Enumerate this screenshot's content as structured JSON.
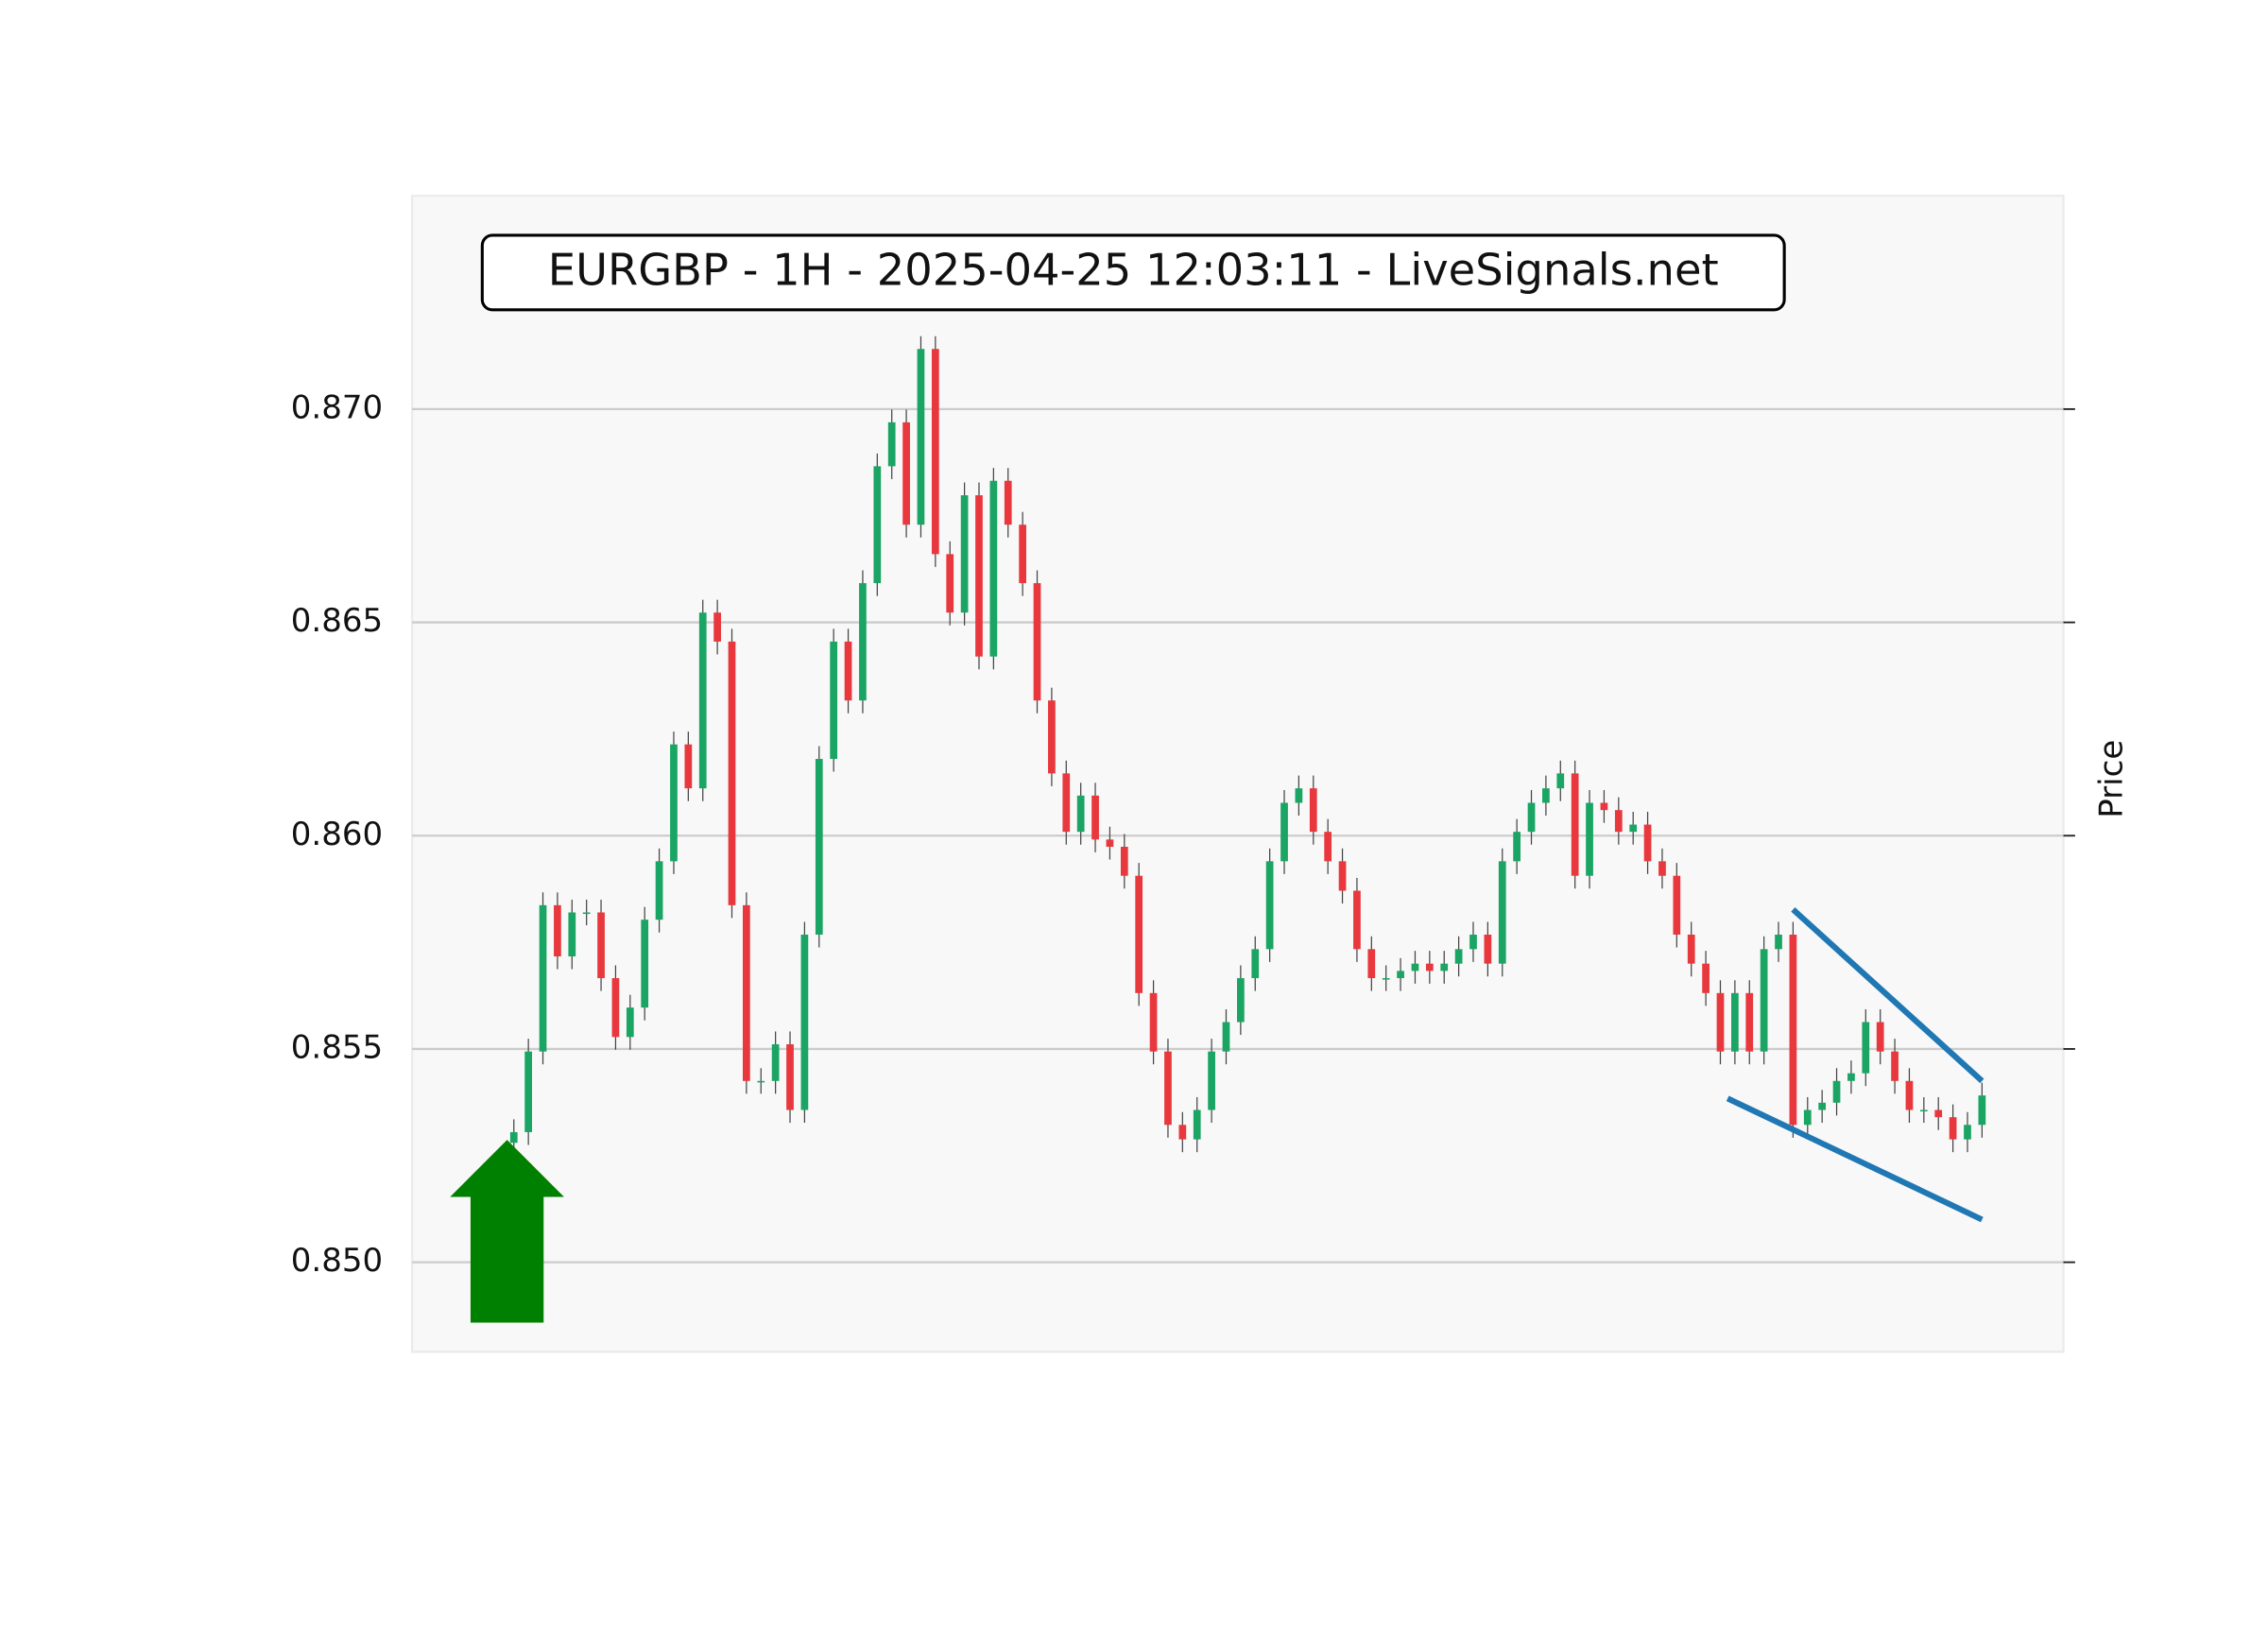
{
  "chart_data": {
    "type": "candlestick",
    "title": "EURGBP - 1H - 2025-04-25 12:03:11 - LiveSignals.net",
    "y_label": "Price",
    "up_color": "#1aa564",
    "down_color": "#e8383d",
    "wick_color": "#444444",
    "grid": true,
    "xlim": [
      -7,
      106.6
    ],
    "ylim": [
      0.8479,
      0.875
    ],
    "yticks": [
      {
        "value": 0.85,
        "label": "0.850"
      },
      0.855,
      {
        "value": 0.86,
        "label": "0.860"
      },
      0.865,
      {
        "value": 0.87,
        "label": "0.870"
      }
    ],
    "open": [
      0.8528,
      0.85305,
      0.85494,
      0.85837,
      0.85717,
      0.8582,
      0.8582,
      0.85666,
      0.85528,
      0.85597,
      0.85803,
      0.8594,
      0.86214,
      0.86111,
      0.86523,
      0.86455,
      0.85837,
      0.85425,
      0.85425,
      0.85511,
      0.85357,
      0.85768,
      0.8618,
      0.86455,
      0.86317,
      0.86592,
      0.86866,
      0.86969,
      0.86729,
      0.87141,
      0.8666,
      0.86523,
      0.86798,
      0.8642,
      0.86832,
      0.86729,
      0.86592,
      0.86317,
      0.86146,
      0.86009,
      0.86094,
      0.85991,
      0.85974,
      0.85906,
      0.85631,
      0.85494,
      0.85322,
      0.85288,
      0.85357,
      0.85494,
      0.85563,
      0.85666,
      0.85734,
      0.8594,
      0.86077,
      0.86111,
      0.86009,
      0.8594,
      0.85871,
      0.85734,
      0.85666,
      0.85666,
      0.85683,
      0.857,
      0.85683,
      0.857,
      0.85734,
      0.85768,
      0.857,
      0.8594,
      0.86009,
      0.86077,
      0.86111,
      0.86146,
      0.85906,
      0.86077,
      0.8606,
      0.86009,
      0.86026,
      0.8594,
      0.85906,
      0.85768,
      0.857,
      0.85631,
      0.85494,
      0.85631,
      0.85494,
      0.85734,
      0.85768,
      0.85322,
      0.85357,
      0.85374,
      0.85425,
      0.85443,
      0.85563,
      0.85494,
      0.85425,
      0.85357,
      0.85357,
      0.8534,
      0.85288,
      0.85322
    ],
    "high": [
      0.85335,
      0.85524,
      0.85867,
      0.85867,
      0.8585,
      0.8585,
      0.8585,
      0.85696,
      0.85627,
      0.85833,
      0.8597,
      0.86244,
      0.86244,
      0.86553,
      0.86553,
      0.86485,
      0.85867,
      0.85455,
      0.85541,
      0.85541,
      0.85798,
      0.8621,
      0.86485,
      0.86485,
      0.86622,
      0.86896,
      0.86999,
      0.86999,
      0.87171,
      0.87171,
      0.8669,
      0.86828,
      0.86828,
      0.86862,
      0.86862,
      0.86759,
      0.86622,
      0.86347,
      0.86176,
      0.86124,
      0.86124,
      0.86021,
      0.86004,
      0.85936,
      0.85661,
      0.85524,
      0.85352,
      0.85387,
      0.85524,
      0.85593,
      0.85696,
      0.85764,
      0.8597,
      0.86107,
      0.86141,
      0.86141,
      0.86039,
      0.8597,
      0.85901,
      0.85764,
      0.85696,
      0.85713,
      0.8573,
      0.8573,
      0.8573,
      0.85764,
      0.85798,
      0.85798,
      0.8597,
      0.86039,
      0.86107,
      0.86141,
      0.86176,
      0.86176,
      0.86107,
      0.86107,
      0.8609,
      0.86056,
      0.86056,
      0.8597,
      0.85936,
      0.85798,
      0.8573,
      0.85661,
      0.85661,
      0.85661,
      0.85764,
      0.85798,
      0.85798,
      0.85387,
      0.85404,
      0.85455,
      0.85473,
      0.85593,
      0.85593,
      0.85524,
      0.85455,
      0.85387,
      0.85387,
      0.8537,
      0.85352,
      0.85421
    ],
    "low": [
      0.8525,
      0.85275,
      0.85464,
      0.85687,
      0.85687,
      0.8579,
      0.85636,
      0.85498,
      0.85498,
      0.85567,
      0.85773,
      0.8591,
      0.86081,
      0.86081,
      0.86425,
      0.85807,
      0.85395,
      0.85395,
      0.85395,
      0.85327,
      0.85327,
      0.85738,
      0.8615,
      0.86287,
      0.86287,
      0.86562,
      0.86836,
      0.86699,
      0.86699,
      0.8663,
      0.86493,
      0.86493,
      0.8639,
      0.8639,
      0.86699,
      0.86562,
      0.86287,
      0.86116,
      0.85979,
      0.85979,
      0.85961,
      0.85944,
      0.85876,
      0.85601,
      0.85464,
      0.85292,
      0.85258,
      0.85258,
      0.85327,
      0.85464,
      0.85533,
      0.85636,
      0.85704,
      0.8591,
      0.86047,
      0.85979,
      0.8591,
      0.85841,
      0.85704,
      0.85636,
      0.85636,
      0.85636,
      0.85653,
      0.85653,
      0.85653,
      0.8567,
      0.85704,
      0.8567,
      0.8567,
      0.8591,
      0.85979,
      0.86047,
      0.86081,
      0.85876,
      0.85876,
      0.8603,
      0.85979,
      0.85979,
      0.8591,
      0.85876,
      0.85738,
      0.8567,
      0.85601,
      0.85464,
      0.85464,
      0.85464,
      0.85464,
      0.85704,
      0.85292,
      0.85292,
      0.85327,
      0.85344,
      0.85395,
      0.85413,
      0.85464,
      0.85395,
      0.85327,
      0.85327,
      0.8531,
      0.85258,
      0.85258,
      0.85292
    ],
    "close": [
      0.85305,
      0.85494,
      0.85837,
      0.85717,
      0.8582,
      0.8582,
      0.85666,
      0.85528,
      0.85597,
      0.85803,
      0.8594,
      0.86214,
      0.86111,
      0.86523,
      0.86455,
      0.85837,
      0.85425,
      0.85425,
      0.85511,
      0.85357,
      0.85768,
      0.8618,
      0.86455,
      0.86317,
      0.86592,
      0.86866,
      0.86969,
      0.86729,
      0.87141,
      0.8666,
      0.86523,
      0.86798,
      0.8642,
      0.86832,
      0.86729,
      0.86592,
      0.86317,
      0.86146,
      0.86009,
      0.86094,
      0.85991,
      0.85974,
      0.85906,
      0.85631,
      0.85494,
      0.85322,
      0.85288,
      0.85357,
      0.85494,
      0.85563,
      0.85666,
      0.85734,
      0.8594,
      0.86077,
      0.86111,
      0.86009,
      0.8594,
      0.85871,
      0.85734,
      0.85666,
      0.85666,
      0.85683,
      0.857,
      0.85683,
      0.857,
      0.85734,
      0.85768,
      0.857,
      0.8594,
      0.86009,
      0.86077,
      0.86111,
      0.86146,
      0.85906,
      0.86077,
      0.8606,
      0.86009,
      0.86026,
      0.8594,
      0.85906,
      0.85768,
      0.857,
      0.85631,
      0.85494,
      0.85631,
      0.85494,
      0.85734,
      0.85768,
      0.85322,
      0.85357,
      0.85374,
      0.85425,
      0.85443,
      0.85563,
      0.85494,
      0.85425,
      0.85357,
      0.85357,
      0.8534,
      0.85288,
      0.85322,
      0.85391
    ],
    "trendlines": [
      {
        "x": [
          88,
          101
        ],
        "y": [
          0.85827,
          0.85425
        ],
        "color": "#1f77b4"
      },
      {
        "x": [
          83.5,
          101
        ],
        "y": [
          0.85384,
          0.851
        ],
        "color": "#1f77b4"
      }
    ]
  }
}
